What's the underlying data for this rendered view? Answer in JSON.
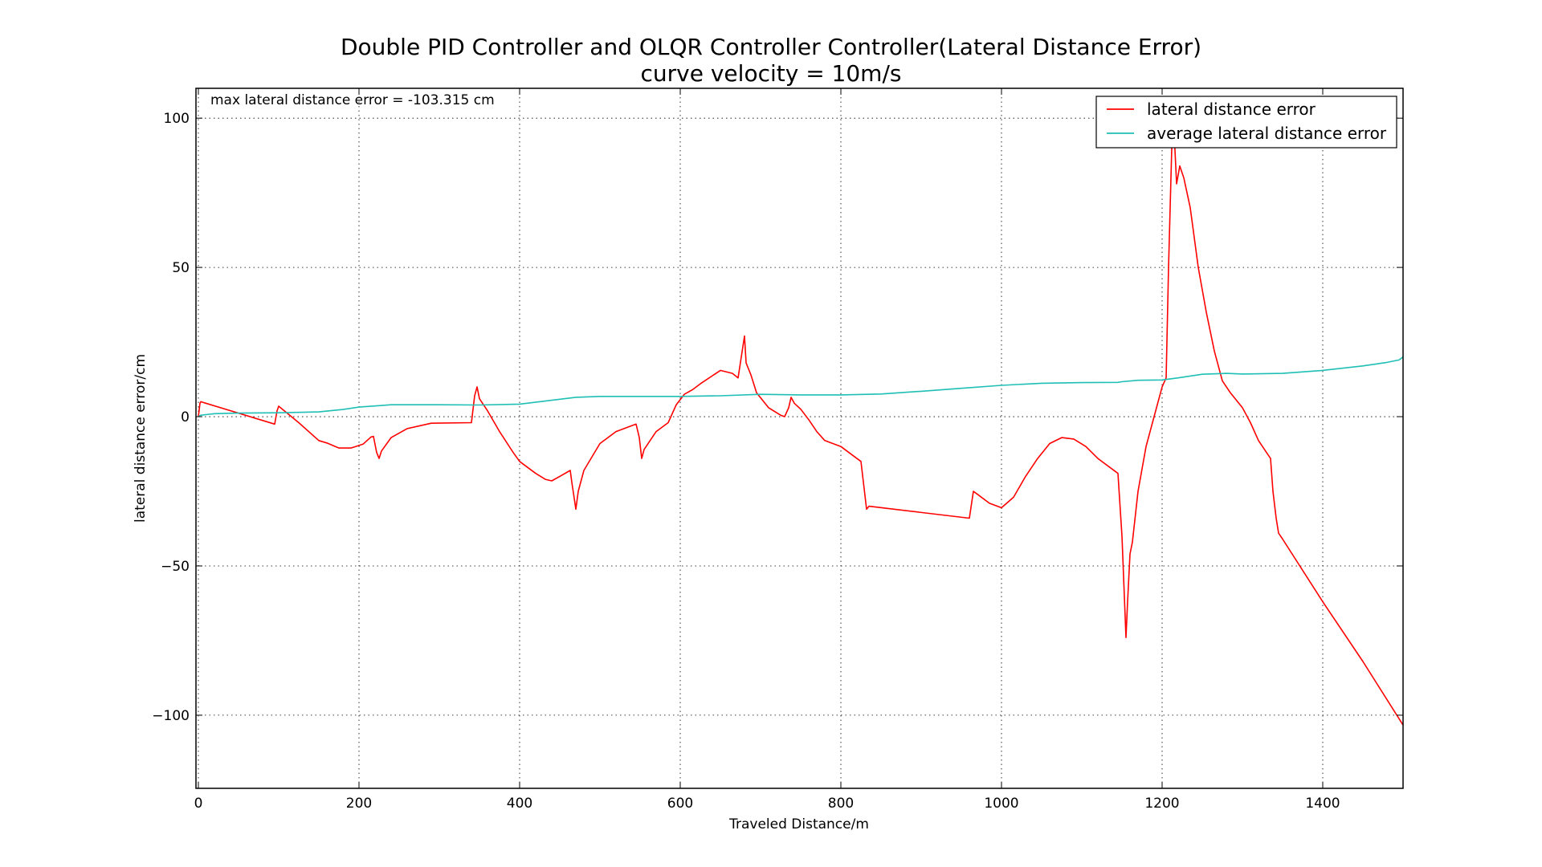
{
  "chart_data": {
    "type": "line",
    "title": "Double PID Controller and OLQR Controller Controller(Lateral Distance Error)",
    "subtitle": "curve velocity = 10m/s",
    "xlabel": "Traveled Distance/m",
    "ylabel": "lateral distance error/cm",
    "xlim": [
      -3,
      1500
    ],
    "ylim": [
      -124.5,
      110
    ],
    "xticks": [
      0,
      200,
      400,
      600,
      800,
      1000,
      1200,
      1400
    ],
    "yticks": [
      100,
      50,
      0,
      -50,
      -100
    ],
    "ytick_labels": [
      "100",
      "50",
      "0",
      "−50",
      "−100"
    ],
    "grid": true,
    "legend_position": "top-right",
    "annotation": "max lateral distance error = -103.315 cm",
    "series": [
      {
        "name": "lateral distance error",
        "color": "#ff0000",
        "points": [
          [
            0,
            0
          ],
          [
            2,
            4.5
          ],
          [
            3,
            5
          ],
          [
            95,
            -2.5
          ],
          [
            98,
            2
          ],
          [
            100,
            3.5
          ],
          [
            125,
            -2
          ],
          [
            150,
            -8
          ],
          [
            160,
            -8.8
          ],
          [
            175,
            -10.5
          ],
          [
            190,
            -10.5
          ],
          [
            205,
            -9.2
          ],
          [
            215,
            -6.8
          ],
          [
            218,
            -6.6
          ],
          [
            222,
            -12
          ],
          [
            225,
            -14
          ],
          [
            228,
            -11.5
          ],
          [
            240,
            -7
          ],
          [
            260,
            -4
          ],
          [
            290,
            -2.2
          ],
          [
            340,
            -2
          ],
          [
            344,
            7
          ],
          [
            347,
            10
          ],
          [
            350,
            6
          ],
          [
            360,
            2
          ],
          [
            375,
            -5
          ],
          [
            392,
            -12
          ],
          [
            400,
            -15
          ],
          [
            420,
            -19
          ],
          [
            432,
            -21
          ],
          [
            440,
            -21.5
          ],
          [
            450,
            -20
          ],
          [
            463,
            -18
          ],
          [
            465,
            -22
          ],
          [
            470,
            -31
          ],
          [
            473,
            -25
          ],
          [
            480,
            -18
          ],
          [
            500,
            -9
          ],
          [
            520,
            -5
          ],
          [
            545,
            -2.5
          ],
          [
            549,
            -7
          ],
          [
            552,
            -14
          ],
          [
            555,
            -11
          ],
          [
            570,
            -5
          ],
          [
            585,
            -2
          ],
          [
            595,
            4
          ],
          [
            605,
            7.5
          ],
          [
            615,
            9
          ],
          [
            625,
            11
          ],
          [
            650,
            15.5
          ],
          [
            665,
            14.5
          ],
          [
            672,
            13
          ],
          [
            676,
            20
          ],
          [
            680,
            27
          ],
          [
            682,
            18
          ],
          [
            688,
            14
          ],
          [
            695,
            8
          ],
          [
            710,
            3
          ],
          [
            725,
            0.5
          ],
          [
            730,
            0
          ],
          [
            735,
            3
          ],
          [
            738,
            6.5
          ],
          [
            742,
            4.5
          ],
          [
            750,
            2.5
          ],
          [
            760,
            -1
          ],
          [
            770,
            -5
          ],
          [
            780,
            -8
          ],
          [
            790,
            -9
          ],
          [
            800,
            -10
          ],
          [
            810,
            -12
          ],
          [
            825,
            -15
          ],
          [
            832,
            -31
          ],
          [
            835,
            -30
          ],
          [
            960,
            -34
          ],
          [
            965,
            -25
          ],
          [
            970,
            -26
          ],
          [
            985,
            -29
          ],
          [
            1000,
            -30.5
          ],
          [
            1015,
            -27
          ],
          [
            1030,
            -20
          ],
          [
            1045,
            -14
          ],
          [
            1060,
            -9
          ],
          [
            1075,
            -7
          ],
          [
            1090,
            -7.5
          ],
          [
            1105,
            -10
          ],
          [
            1120,
            -14
          ],
          [
            1145,
            -19
          ],
          [
            1150,
            -40
          ],
          [
            1155,
            -74
          ],
          [
            1157,
            -62
          ],
          [
            1160,
            -46
          ],
          [
            1163,
            -42
          ],
          [
            1170,
            -25
          ],
          [
            1180,
            -10
          ],
          [
            1190,
            0
          ],
          [
            1200,
            10
          ],
          [
            1205,
            13
          ],
          [
            1208,
            50
          ],
          [
            1212,
            90
          ],
          [
            1215,
            95
          ],
          [
            1218,
            78
          ],
          [
            1222,
            84
          ],
          [
            1227,
            80
          ],
          [
            1235,
            70
          ],
          [
            1245,
            50
          ],
          [
            1255,
            35
          ],
          [
            1265,
            22
          ],
          [
            1275,
            12
          ],
          [
            1285,
            8
          ],
          [
            1300,
            3
          ],
          [
            1310,
            -2
          ],
          [
            1320,
            -8
          ],
          [
            1330,
            -12
          ],
          [
            1335,
            -14
          ],
          [
            1338,
            -25
          ],
          [
            1342,
            -34
          ],
          [
            1345,
            -39
          ],
          [
            1350,
            -41
          ],
          [
            1400,
            -62
          ],
          [
            1450,
            -82
          ],
          [
            1500,
            -103.3
          ]
        ]
      },
      {
        "name": "average lateral distance error",
        "color": "#1fbfb5",
        "points": [
          [
            0,
            0
          ],
          [
            3,
            0.5
          ],
          [
            20,
            1
          ],
          [
            50,
            1.2
          ],
          [
            100,
            1.3
          ],
          [
            150,
            1.6
          ],
          [
            180,
            2.4
          ],
          [
            200,
            3.2
          ],
          [
            225,
            3.7
          ],
          [
            240,
            4
          ],
          [
            300,
            4
          ],
          [
            350,
            3.9
          ],
          [
            400,
            4.2
          ],
          [
            440,
            5.5
          ],
          [
            470,
            6.5
          ],
          [
            500,
            6.8
          ],
          [
            550,
            6.8
          ],
          [
            600,
            6.8
          ],
          [
            650,
            7
          ],
          [
            700,
            7.5
          ],
          [
            750,
            7.3
          ],
          [
            800,
            7.3
          ],
          [
            850,
            7.6
          ],
          [
            900,
            8.5
          ],
          [
            950,
            9.5
          ],
          [
            1000,
            10.5
          ],
          [
            1050,
            11.2
          ],
          [
            1100,
            11.4
          ],
          [
            1145,
            11.5
          ],
          [
            1150,
            11.7
          ],
          [
            1170,
            12.2
          ],
          [
            1200,
            12.3
          ],
          [
            1220,
            13
          ],
          [
            1250,
            14.2
          ],
          [
            1280,
            14.5
          ],
          [
            1300,
            14.3
          ],
          [
            1350,
            14.5
          ],
          [
            1400,
            15.5
          ],
          [
            1450,
            17
          ],
          [
            1480,
            18.2
          ],
          [
            1495,
            19
          ],
          [
            1500,
            20
          ]
        ]
      }
    ]
  }
}
